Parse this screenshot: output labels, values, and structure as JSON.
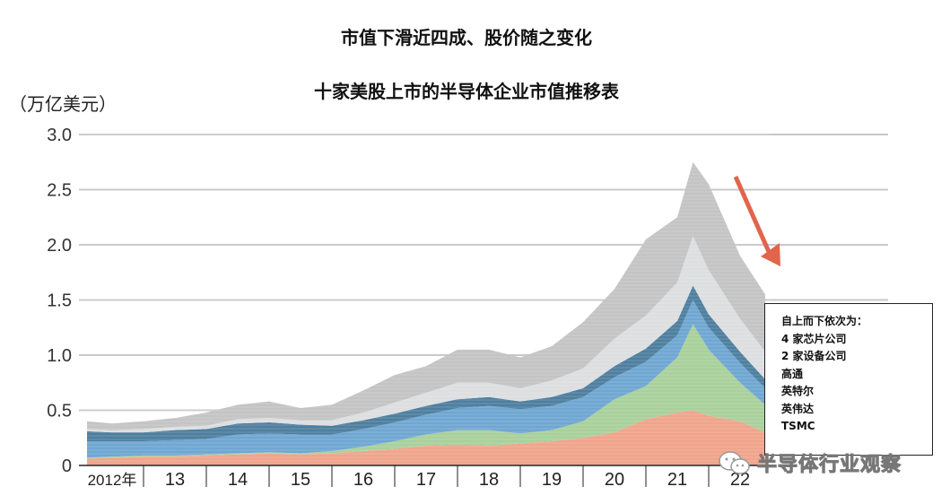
{
  "title": "市值下滑近四成、股价随之变化",
  "subtitle": "十家美股上市的半导体企业市值推移表",
  "watermark": "半导体行业观察",
  "legend": {
    "heading": "自上而下依次为：",
    "items": [
      "4 家芯片公司",
      "2 家设备公司",
      "高通",
      "英特尔",
      "英伟达",
      "TSMC"
    ]
  },
  "chart_data": {
    "type": "area",
    "stacked": true,
    "title": "十家美股上市的半导体企业市值推移表",
    "ylabel": "（万亿美元）",
    "xlabel": "",
    "ylim": [
      0,
      3.0
    ],
    "yticks": [
      "0",
      "0.5",
      "1.0",
      "1.5",
      "2.0",
      "2.5",
      "3.0"
    ],
    "ytick_values": [
      0,
      0.5,
      1.0,
      1.5,
      2.0,
      2.5,
      3.0
    ],
    "xlim": [
      2012,
      2023
    ],
    "xtick_labels": [
      "2012年",
      "13",
      "14",
      "15",
      "16",
      "17",
      "18",
      "19",
      "20",
      "21",
      "22"
    ],
    "grid": true,
    "legend_position": "right",
    "x": [
      2012.1,
      2012.5,
      2013.0,
      2013.5,
      2014.0,
      2014.5,
      2015.0,
      2015.5,
      2016.0,
      2016.5,
      2017.0,
      2017.5,
      2018.0,
      2018.5,
      2019.0,
      2019.5,
      2020.0,
      2020.5,
      2021.0,
      2021.5,
      2021.75,
      2022.0,
      2022.5,
      2022.9
    ],
    "series": [
      {
        "name": "TSMC",
        "color": "#f0a48c",
        "values": [
          0.06,
          0.07,
          0.08,
          0.08,
          0.09,
          0.1,
          0.11,
          0.1,
          0.11,
          0.13,
          0.15,
          0.18,
          0.19,
          0.18,
          0.2,
          0.22,
          0.25,
          0.3,
          0.42,
          0.48,
          0.5,
          0.45,
          0.4,
          0.3
        ]
      },
      {
        "name": "英伟达",
        "color": "#a9d09b",
        "values": [
          0.01,
          0.01,
          0.01,
          0.01,
          0.01,
          0.01,
          0.01,
          0.01,
          0.02,
          0.04,
          0.07,
          0.1,
          0.13,
          0.14,
          0.09,
          0.1,
          0.15,
          0.3,
          0.3,
          0.5,
          0.78,
          0.6,
          0.35,
          0.25
        ]
      },
      {
        "name": "英特尔",
        "color": "#6fa7d2",
        "values": [
          0.15,
          0.14,
          0.13,
          0.14,
          0.14,
          0.17,
          0.17,
          0.17,
          0.15,
          0.16,
          0.17,
          0.18,
          0.2,
          0.22,
          0.22,
          0.22,
          0.22,
          0.2,
          0.22,
          0.2,
          0.22,
          0.2,
          0.18,
          0.15
        ]
      },
      {
        "name": "高通",
        "color": "#4e7f9f",
        "values": [
          0.09,
          0.08,
          0.08,
          0.09,
          0.09,
          0.1,
          0.1,
          0.09,
          0.08,
          0.08,
          0.08,
          0.08,
          0.08,
          0.08,
          0.07,
          0.08,
          0.08,
          0.1,
          0.12,
          0.13,
          0.13,
          0.12,
          0.1,
          0.08
        ]
      },
      {
        "name": "2 家设备公司",
        "color": "#dcdee0",
        "values": [
          0.02,
          0.02,
          0.03,
          0.03,
          0.03,
          0.04,
          0.04,
          0.04,
          0.05,
          0.07,
          0.1,
          0.12,
          0.15,
          0.13,
          0.12,
          0.15,
          0.18,
          0.25,
          0.3,
          0.35,
          0.45,
          0.4,
          0.3,
          0.25
        ]
      },
      {
        "name": "4 家芯片公司",
        "color": "#c4c4c4",
        "values": [
          0.07,
          0.06,
          0.07,
          0.08,
          0.12,
          0.13,
          0.15,
          0.11,
          0.14,
          0.2,
          0.25,
          0.24,
          0.3,
          0.3,
          0.28,
          0.31,
          0.42,
          0.45,
          0.69,
          0.59,
          0.67,
          0.78,
          0.57,
          0.52
        ]
      }
    ],
    "annotation": "downward arrow after 2021 peak",
    "arrow_color": "#e0654c"
  }
}
